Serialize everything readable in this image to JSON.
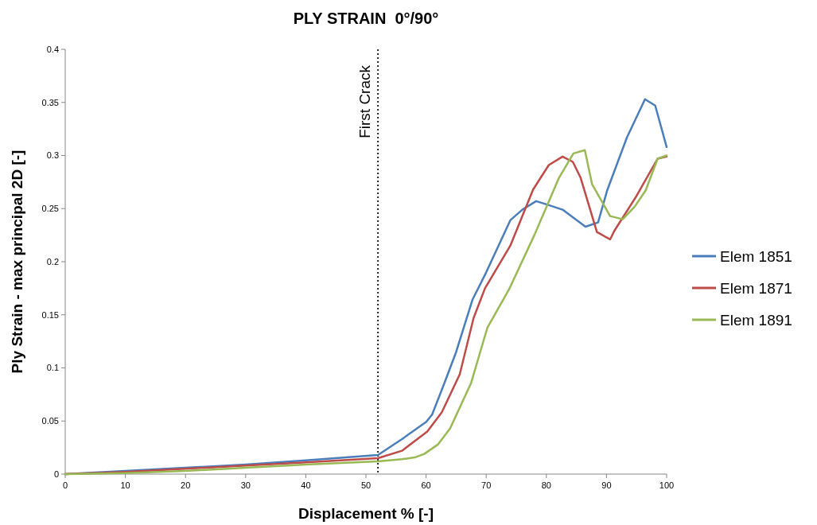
{
  "chart_data": {
    "type": "line",
    "title": "PLY STRAIN  0°/90°",
    "xlabel": "Displacement  % [-]",
    "ylabel": "Ply Strain - max principal 2D [-]",
    "xlim": [
      0,
      100
    ],
    "ylim": [
      0,
      0.4
    ],
    "xticks": [
      0,
      10,
      20,
      30,
      40,
      50,
      60,
      70,
      80,
      90,
      100
    ],
    "yticks": [
      0,
      0.05,
      0.1,
      0.15,
      0.2,
      0.25,
      0.3,
      0.35,
      0.4
    ],
    "grid": false,
    "legend": "right",
    "marker": "none",
    "line_style": "solid",
    "ref_lines": [
      {
        "axis": "x",
        "value": 52,
        "label": "First Crack",
        "line_style": "dotted",
        "color": "#222222"
      }
    ],
    "series": [
      {
        "name": "Elem 1851",
        "color": "#4a7ebb",
        "x": [
          0,
          10,
          20,
          30,
          40,
          52,
          56,
          60,
          61,
          63,
          65,
          67.7,
          70,
          74,
          76,
          78.3,
          80,
          82.7,
          86.5,
          88.6,
          90.1,
          93.4,
          96.4,
          98.1,
          100
        ],
        "values": [
          0,
          0.003,
          0.006,
          0.009,
          0.013,
          0.018,
          0.033,
          0.049,
          0.056,
          0.085,
          0.115,
          0.164,
          0.19,
          0.239,
          0.249,
          0.257,
          0.254,
          0.249,
          0.233,
          0.237,
          0.267,
          0.317,
          0.353,
          0.347,
          0.308
        ]
      },
      {
        "name": "Elem 1871",
        "color": "#be4b48",
        "x": [
          0,
          10,
          20,
          30,
          40,
          52,
          56,
          60.2,
          62.6,
          65.6,
          67.9,
          69.8,
          74,
          77.8,
          80.4,
          82.7,
          84.4,
          85.7,
          88.4,
          90.6,
          91.3,
          95,
          98.5,
          100
        ],
        "values": [
          0,
          0.002,
          0.005,
          0.008,
          0.011,
          0.015,
          0.022,
          0.04,
          0.058,
          0.094,
          0.147,
          0.175,
          0.215,
          0.268,
          0.291,
          0.299,
          0.294,
          0.279,
          0.228,
          0.221,
          0.229,
          0.262,
          0.297,
          0.299
        ]
      },
      {
        "name": "Elem 1891",
        "color": "#98b954",
        "x": [
          0,
          10,
          20,
          30,
          40,
          52,
          56,
          58.3,
          59.7,
          62,
          64,
          67.5,
          70.2,
          73.8,
          78,
          82.1,
          84.5,
          86.4,
          87.6,
          90.6,
          92.7,
          94.7,
          96.5,
          98.5,
          100
        ],
        "values": [
          0,
          0.001,
          0.003,
          0.006,
          0.009,
          0.012,
          0.014,
          0.016,
          0.019,
          0.028,
          0.043,
          0.086,
          0.138,
          0.174,
          0.225,
          0.279,
          0.302,
          0.305,
          0.273,
          0.243,
          0.24,
          0.252,
          0.267,
          0.297,
          0.3
        ]
      }
    ]
  }
}
